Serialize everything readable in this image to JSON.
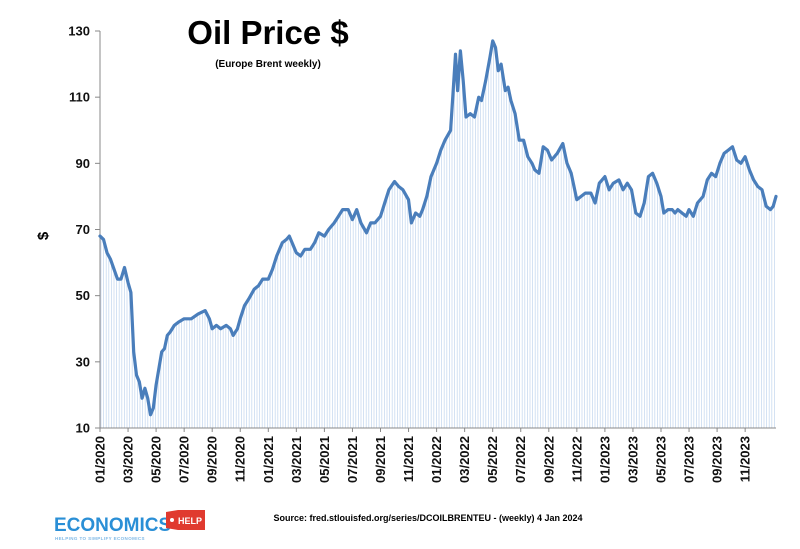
{
  "chart_data": {
    "type": "area",
    "title": "Oil Price $",
    "subtitle": "(Europe Brent weekly)",
    "ylabel": "$",
    "ylim": [
      10,
      130
    ],
    "yticks": [
      10,
      30,
      50,
      70,
      90,
      110,
      130
    ],
    "grid": false,
    "xlim": [
      0,
      48.2
    ],
    "xticks": [
      {
        "label": "01/2020",
        "m": 0
      },
      {
        "label": "03/2020",
        "m": 2
      },
      {
        "label": "05/2020",
        "m": 4
      },
      {
        "label": "07/2020",
        "m": 6
      },
      {
        "label": "09/2020",
        "m": 8
      },
      {
        "label": "11/2020",
        "m": 10
      },
      {
        "label": "01/2021",
        "m": 12
      },
      {
        "label": "03/2021",
        "m": 14
      },
      {
        "label": "05/2021",
        "m": 16
      },
      {
        "label": "07/2021",
        "m": 18
      },
      {
        "label": "09/2021",
        "m": 20
      },
      {
        "label": "11/2021",
        "m": 22
      },
      {
        "label": "01/2022",
        "m": 24
      },
      {
        "label": "03/2022",
        "m": 26
      },
      {
        "label": "05/2022",
        "m": 28
      },
      {
        "label": "07/2022",
        "m": 30
      },
      {
        "label": "09/2022",
        "m": 32
      },
      {
        "label": "11/2022",
        "m": 34
      },
      {
        "label": "01/2023",
        "m": 36
      },
      {
        "label": "03/2023",
        "m": 38
      },
      {
        "label": "05/2023",
        "m": 40
      },
      {
        "label": "07/2023",
        "m": 42
      },
      {
        "label": "09/2023",
        "m": 44
      },
      {
        "label": "11/2023",
        "m": 46
      }
    ],
    "series": [
      {
        "name": "",
        "color": "#4a7ebb",
        "points": [
          [
            0.0,
            68
          ],
          [
            0.25,
            67
          ],
          [
            0.5,
            63
          ],
          [
            0.75,
            61
          ],
          [
            1.0,
            58
          ],
          [
            1.25,
            55
          ],
          [
            1.5,
            55
          ],
          [
            1.75,
            58.5
          ],
          [
            2.0,
            54
          ],
          [
            2.2,
            51
          ],
          [
            2.4,
            33
          ],
          [
            2.6,
            26
          ],
          [
            2.8,
            24
          ],
          [
            3.0,
            19
          ],
          [
            3.2,
            22
          ],
          [
            3.4,
            19
          ],
          [
            3.6,
            14
          ],
          [
            3.8,
            16
          ],
          [
            4.0,
            23
          ],
          [
            4.2,
            28
          ],
          [
            4.4,
            33
          ],
          [
            4.6,
            34
          ],
          [
            4.8,
            38
          ],
          [
            5.0,
            39
          ],
          [
            5.3,
            41
          ],
          [
            5.6,
            42
          ],
          [
            6.0,
            43
          ],
          [
            6.5,
            43
          ],
          [
            7.0,
            44.5
          ],
          [
            7.5,
            45.5
          ],
          [
            7.8,
            43
          ],
          [
            8.0,
            40
          ],
          [
            8.3,
            41
          ],
          [
            8.6,
            40
          ],
          [
            9.0,
            41
          ],
          [
            9.3,
            40
          ],
          [
            9.5,
            38
          ],
          [
            9.8,
            40
          ],
          [
            10.0,
            43
          ],
          [
            10.3,
            47
          ],
          [
            10.6,
            49
          ],
          [
            11.0,
            52
          ],
          [
            11.3,
            53
          ],
          [
            11.6,
            55
          ],
          [
            12.0,
            55
          ],
          [
            12.3,
            58
          ],
          [
            12.6,
            62
          ],
          [
            13.0,
            66
          ],
          [
            13.3,
            67
          ],
          [
            13.5,
            68
          ],
          [
            13.7,
            66
          ],
          [
            14.0,
            63
          ],
          [
            14.3,
            62
          ],
          [
            14.6,
            64
          ],
          [
            15.0,
            64
          ],
          [
            15.3,
            66
          ],
          [
            15.6,
            69
          ],
          [
            16.0,
            68
          ],
          [
            16.3,
            70
          ],
          [
            16.7,
            72
          ],
          [
            17.0,
            74
          ],
          [
            17.3,
            76
          ],
          [
            17.7,
            76
          ],
          [
            18.0,
            73
          ],
          [
            18.3,
            76
          ],
          [
            18.6,
            72
          ],
          [
            19.0,
            69
          ],
          [
            19.3,
            72
          ],
          [
            19.6,
            72
          ],
          [
            20.0,
            74
          ],
          [
            20.3,
            78
          ],
          [
            20.6,
            82
          ],
          [
            21.0,
            84.5
          ],
          [
            21.3,
            83
          ],
          [
            21.6,
            82
          ],
          [
            22.0,
            79
          ],
          [
            22.2,
            72
          ],
          [
            22.5,
            75
          ],
          [
            22.8,
            74
          ],
          [
            23.0,
            76
          ],
          [
            23.3,
            80
          ],
          [
            23.6,
            86
          ],
          [
            24.0,
            90
          ],
          [
            24.3,
            94
          ],
          [
            24.6,
            97
          ],
          [
            25.0,
            100
          ],
          [
            25.2,
            113
          ],
          [
            25.35,
            123
          ],
          [
            25.5,
            112
          ],
          [
            25.7,
            124
          ],
          [
            25.9,
            115
          ],
          [
            26.1,
            104
          ],
          [
            26.4,
            105
          ],
          [
            26.7,
            104
          ],
          [
            27.0,
            110
          ],
          [
            27.2,
            109
          ],
          [
            27.5,
            115
          ],
          [
            27.8,
            122
          ],
          [
            28.0,
            127
          ],
          [
            28.2,
            125
          ],
          [
            28.4,
            118
          ],
          [
            28.6,
            120
          ],
          [
            28.9,
            112
          ],
          [
            29.1,
            113
          ],
          [
            29.3,
            109
          ],
          [
            29.6,
            105
          ],
          [
            29.9,
            97
          ],
          [
            30.2,
            97
          ],
          [
            30.5,
            92
          ],
          [
            30.8,
            90
          ],
          [
            31.0,
            88
          ],
          [
            31.3,
            87
          ],
          [
            31.6,
            95
          ],
          [
            31.9,
            94
          ],
          [
            32.2,
            91
          ],
          [
            32.6,
            93
          ],
          [
            33.0,
            96
          ],
          [
            33.3,
            90
          ],
          [
            33.6,
            87
          ],
          [
            34.0,
            79
          ],
          [
            34.3,
            80
          ],
          [
            34.6,
            81
          ],
          [
            35.0,
            81
          ],
          [
            35.3,
            78
          ],
          [
            35.6,
            84
          ],
          [
            36.0,
            86
          ],
          [
            36.3,
            82
          ],
          [
            36.6,
            84
          ],
          [
            37.0,
            85
          ],
          [
            37.3,
            82
          ],
          [
            37.6,
            84
          ],
          [
            37.9,
            82
          ],
          [
            38.2,
            75
          ],
          [
            38.5,
            74
          ],
          [
            38.8,
            78
          ],
          [
            39.1,
            86
          ],
          [
            39.4,
            87
          ],
          [
            39.7,
            84
          ],
          [
            40.0,
            80
          ],
          [
            40.2,
            75
          ],
          [
            40.5,
            76
          ],
          [
            40.8,
            76
          ],
          [
            41.0,
            75
          ],
          [
            41.2,
            76
          ],
          [
            41.5,
            75
          ],
          [
            41.8,
            74
          ],
          [
            42.0,
            76
          ],
          [
            42.3,
            74
          ],
          [
            42.6,
            78
          ],
          [
            43.0,
            80
          ],
          [
            43.3,
            85
          ],
          [
            43.6,
            87
          ],
          [
            43.9,
            86
          ],
          [
            44.2,
            90
          ],
          [
            44.5,
            93
          ],
          [
            44.8,
            94
          ],
          [
            45.1,
            95
          ],
          [
            45.4,
            91
          ],
          [
            45.7,
            90
          ],
          [
            46.0,
            92
          ],
          [
            46.3,
            88
          ],
          [
            46.6,
            85
          ],
          [
            46.9,
            83
          ],
          [
            47.2,
            82
          ],
          [
            47.5,
            77
          ],
          [
            47.8,
            76
          ],
          [
            48.0,
            77
          ],
          [
            48.2,
            80
          ]
        ]
      }
    ]
  },
  "footer": {
    "source": "Source: fred.stlouisfed.org/series/DCOILBRENTEU - (weekly) 4 Jan 2024",
    "logo_main": "ECONOMICS",
    "logo_help": "HELP",
    "logo_tagline": "HELPING TO SIMPLIFY ECONOMICS"
  },
  "colors": {
    "line": "#4a7ebb",
    "fill_hatch": "#c9daf0",
    "axis": "#888888",
    "logo_blue": "#2a8fd6",
    "logo_red": "#e03a2f"
  }
}
